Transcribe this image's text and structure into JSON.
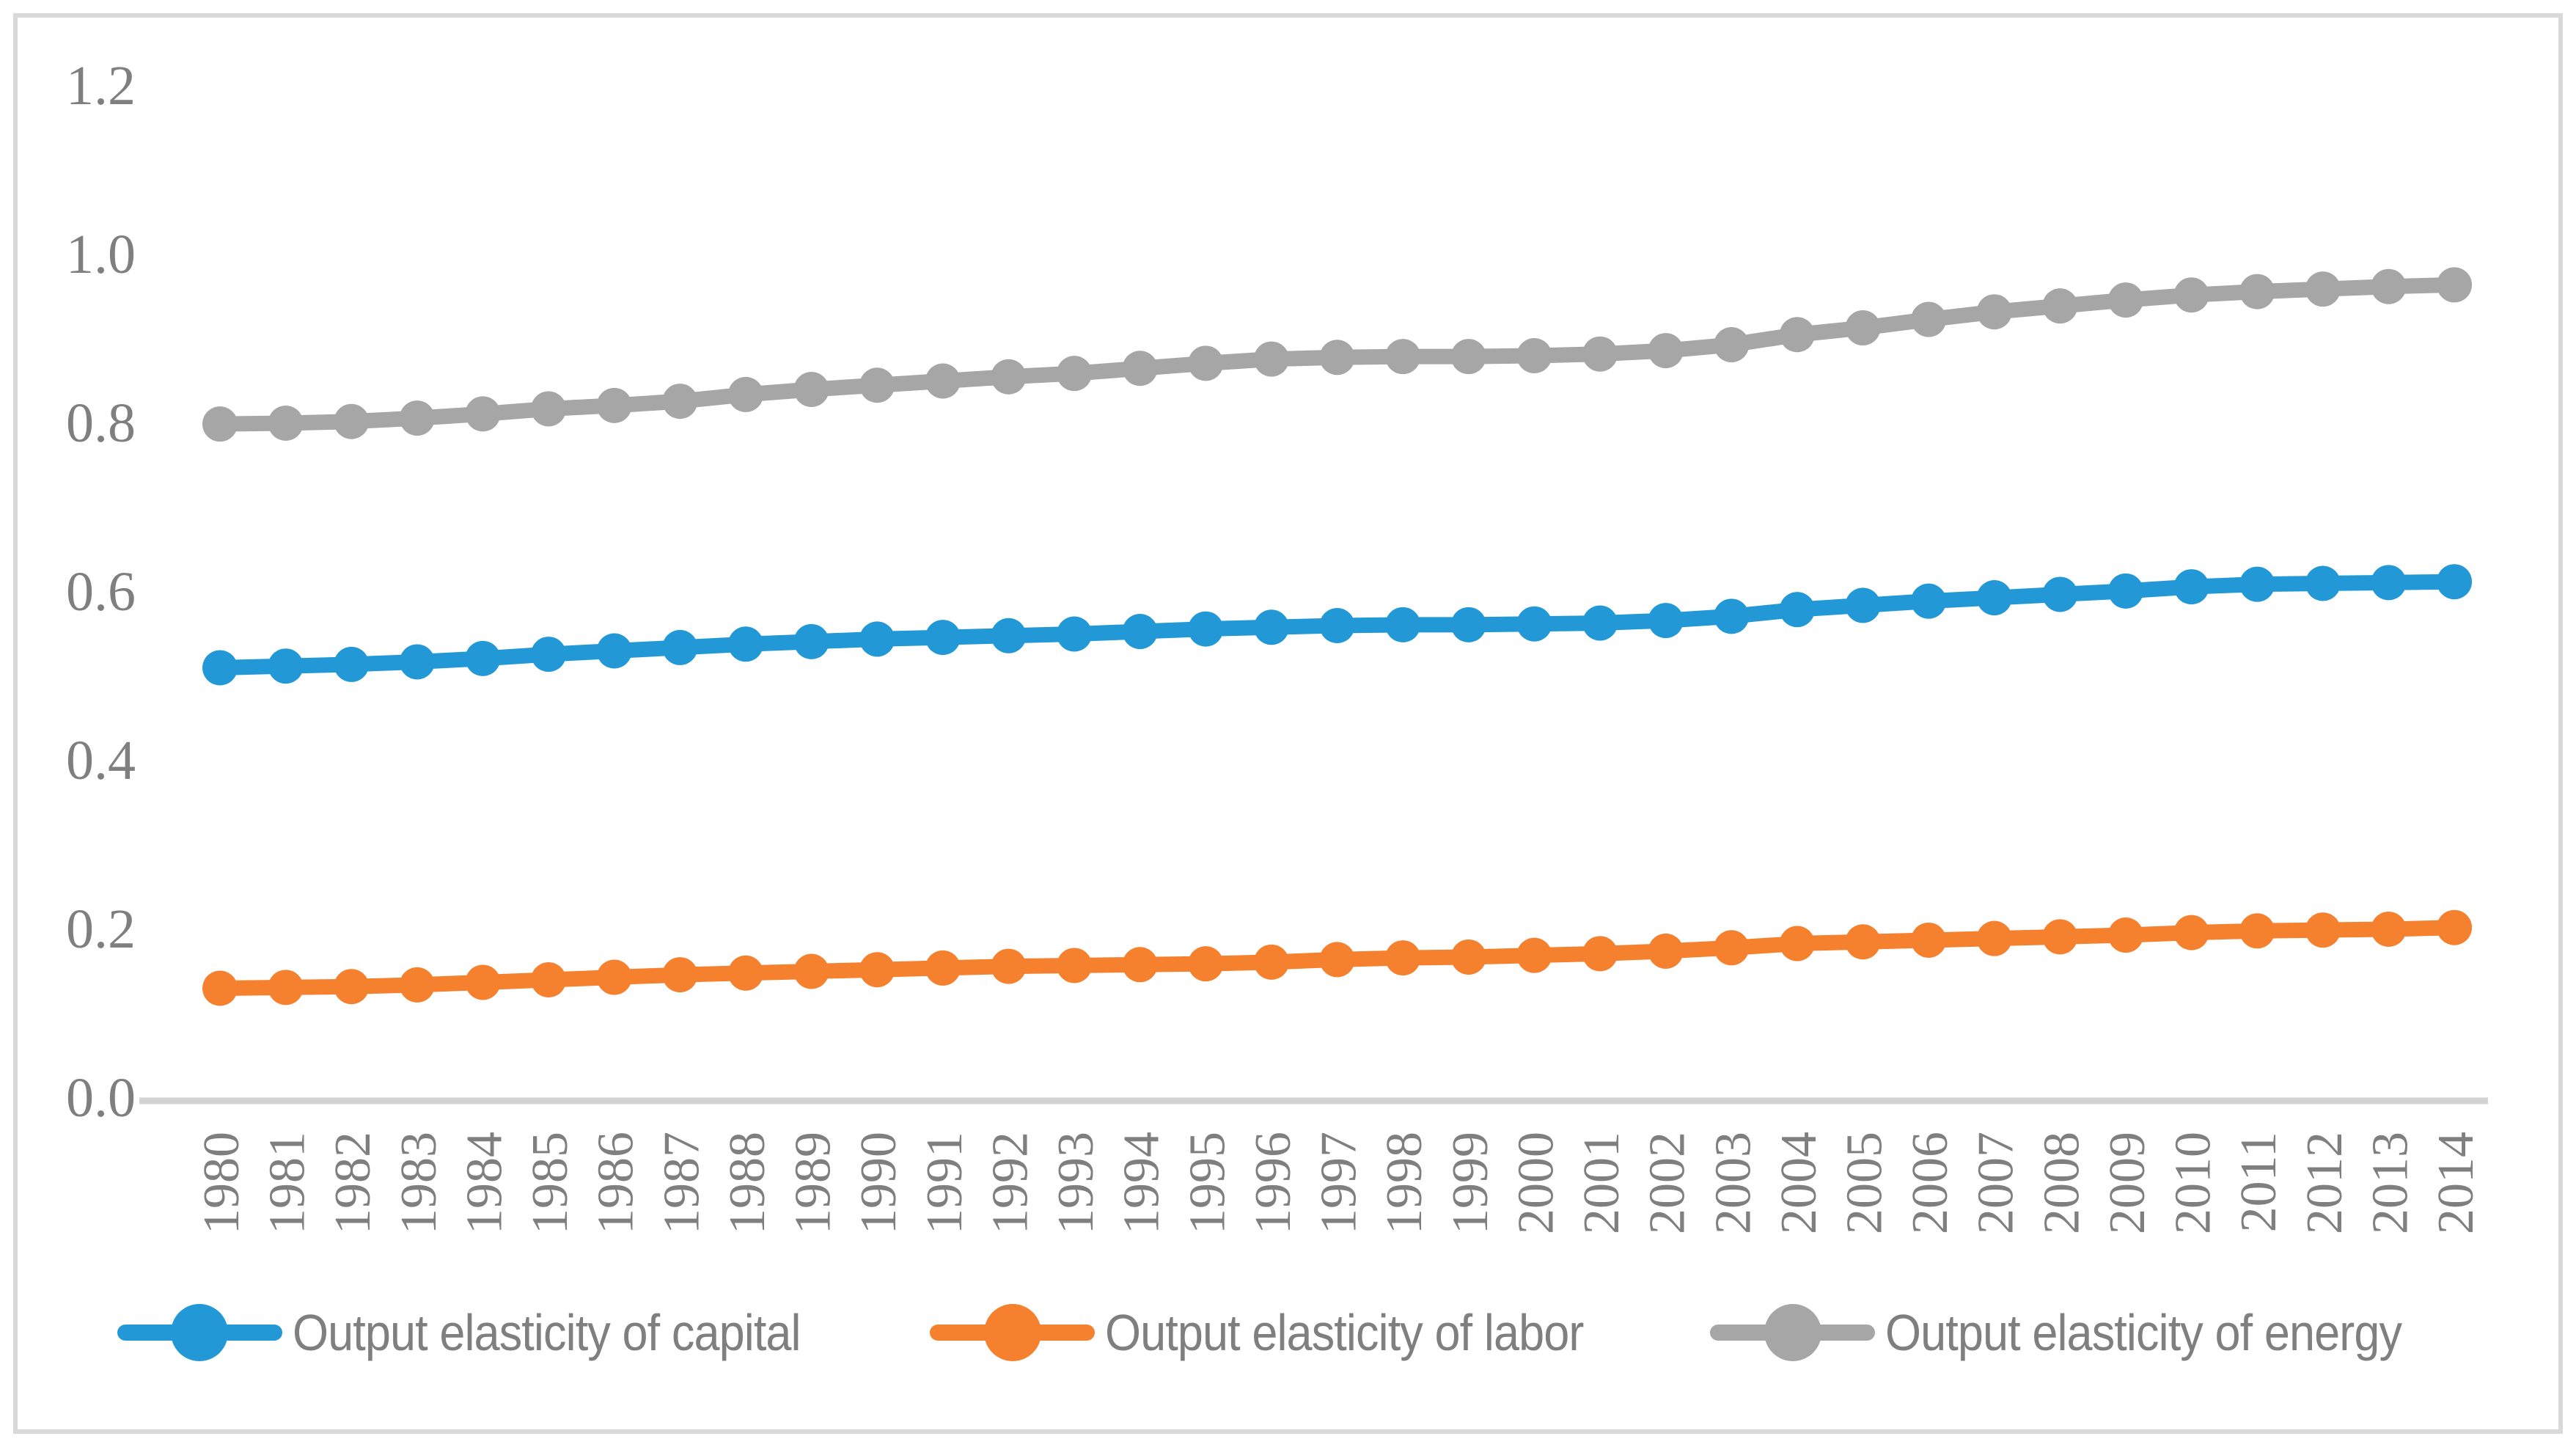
{
  "chart_data": {
    "type": "line",
    "title": "",
    "xlabel": "",
    "ylabel": "",
    "categories": [
      "1980",
      "1981",
      "1982",
      "1983",
      "1984",
      "1985",
      "1986",
      "1987",
      "1988",
      "1989",
      "1990",
      "1991",
      "1992",
      "1993",
      "1994",
      "1995",
      "1996",
      "1997",
      "1998",
      "1999",
      "2000",
      "2001",
      "2002",
      "2003",
      "2004",
      "2005",
      "2006",
      "2007",
      "2008",
      "2009",
      "2010",
      "2011",
      "2012",
      "2013",
      "2014"
    ],
    "series": [
      {
        "name": "Output elasticity of capital",
        "color": "#2299d6",
        "values": [
          0.51,
          0.512,
          0.514,
          0.517,
          0.521,
          0.526,
          0.53,
          0.534,
          0.538,
          0.541,
          0.544,
          0.546,
          0.548,
          0.55,
          0.553,
          0.556,
          0.558,
          0.56,
          0.561,
          0.561,
          0.562,
          0.563,
          0.566,
          0.571,
          0.579,
          0.584,
          0.589,
          0.593,
          0.597,
          0.601,
          0.606,
          0.609,
          0.61,
          0.611,
          0.612
        ]
      },
      {
        "name": "Output elasticity of labor",
        "color": "#f5802d",
        "values": [
          0.13,
          0.131,
          0.132,
          0.134,
          0.137,
          0.14,
          0.143,
          0.146,
          0.148,
          0.15,
          0.152,
          0.154,
          0.156,
          0.157,
          0.158,
          0.159,
          0.161,
          0.164,
          0.166,
          0.167,
          0.169,
          0.171,
          0.174,
          0.178,
          0.183,
          0.185,
          0.187,
          0.189,
          0.191,
          0.193,
          0.196,
          0.198,
          0.199,
          0.2,
          0.202
        ]
      },
      {
        "name": "Output elasticity of energy",
        "color": "#a6a6a6",
        "values": [
          0.799,
          0.8,
          0.802,
          0.806,
          0.811,
          0.817,
          0.821,
          0.826,
          0.834,
          0.84,
          0.845,
          0.85,
          0.855,
          0.859,
          0.865,
          0.871,
          0.876,
          0.878,
          0.879,
          0.879,
          0.88,
          0.882,
          0.886,
          0.893,
          0.905,
          0.913,
          0.923,
          0.932,
          0.939,
          0.946,
          0.952,
          0.956,
          0.959,
          0.962,
          0.964
        ]
      }
    ],
    "ylim": [
      0.0,
      1.2
    ],
    "yticks": [
      0.0,
      0.2,
      0.4,
      0.6,
      0.8,
      1.0,
      1.2
    ],
    "ytick_labels": [
      "0.0",
      "0.2",
      "0.4",
      "0.6",
      "0.8",
      "1.0",
      "1.2"
    ],
    "grid": false,
    "marker": "circle",
    "legend_position": "bottom"
  },
  "colors": {
    "axis_text": "#7f7f7f",
    "axis_line": "#d3d3d3",
    "frame_border": "#d9d9d9",
    "legend_text": "#7f7f7f",
    "background": "#ffffff"
  }
}
